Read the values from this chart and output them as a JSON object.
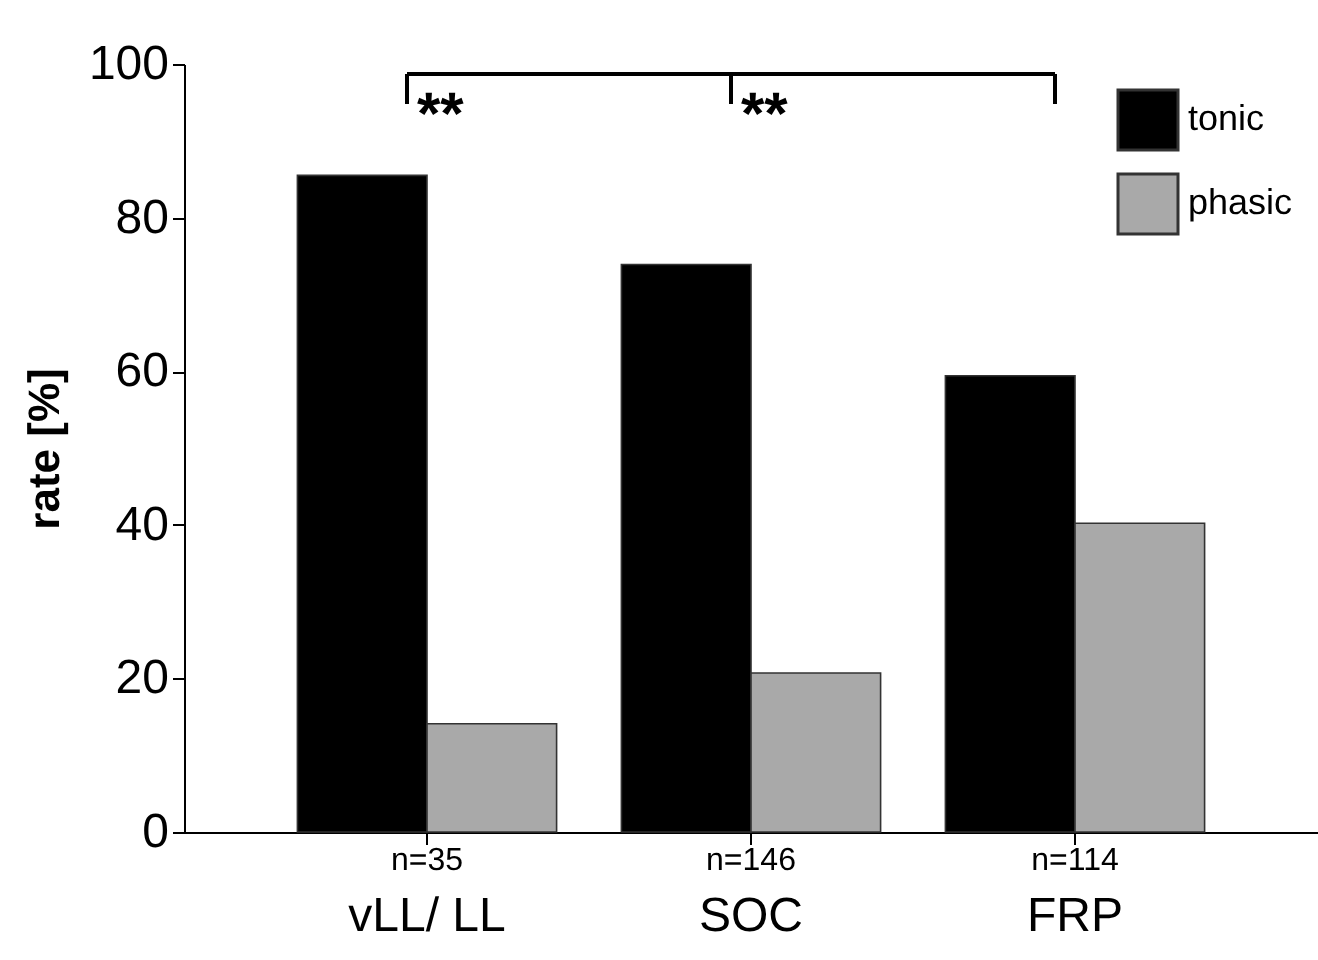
{
  "chart_data": {
    "type": "bar",
    "ylabel": "rate [%]",
    "categories": [
      "vLL/ LL",
      "SOC",
      "FRP"
    ],
    "series": [
      {
        "name": "tonic",
        "color": "#000000",
        "values": [
          85.5,
          73.9,
          59.4
        ]
      },
      {
        "name": "phasic",
        "color": "#a9a9a9",
        "values": [
          14.1,
          20.7,
          40.2
        ]
      }
    ],
    "ylim": [
      0,
      100
    ],
    "yticks": [
      0,
      20,
      40,
      60,
      80,
      100
    ],
    "grid": false,
    "legend": "top right",
    "annotations": [
      "**",
      "**",
      "n=35",
      "n=146",
      "n=114"
    ]
  }
}
